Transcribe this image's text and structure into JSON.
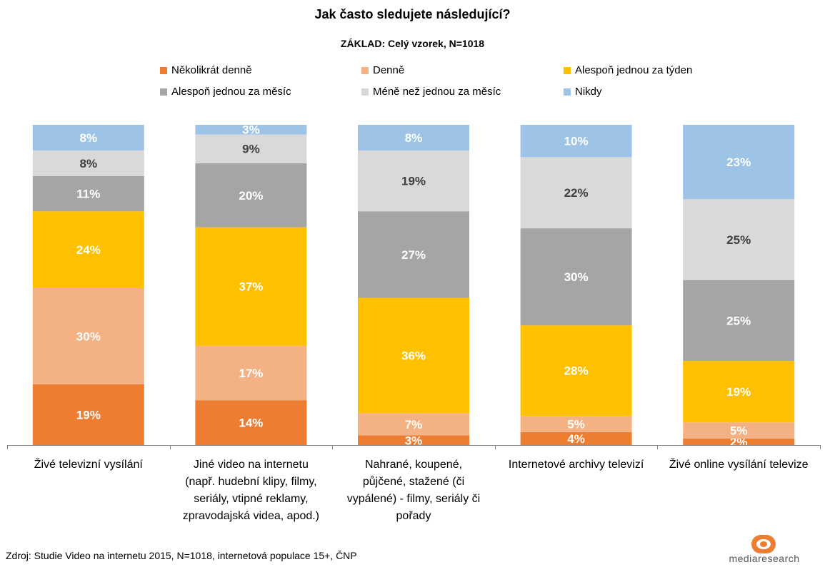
{
  "chart_data": {
    "type": "bar",
    "stacked": true,
    "title": "Jak často sledujete následující?",
    "subtitle": "ZÁKLAD: Celý vzorek, N=1018",
    "categories": [
      "Živé televizní vysílání",
      "Jiné video na internetu (např. hudební klipy, filmy, seriály, vtipné reklamy, zpravodajská videa, apod.)",
      "Nahrané, koupené, půjčené, stažené (či vypálené) - filmy, seriály či pořady",
      "Internetové archivy televizí",
      "Živé online vysílání televize"
    ],
    "category_lines": [
      [
        "Živé televizní vysílání"
      ],
      [
        "Jiné video na internetu",
        "(např. hudební klipy, filmy,",
        "seriály, vtipné reklamy,",
        "zpravodajská videa, apod.)"
      ],
      [
        "Nahrané, koupené,",
        "půjčené, stažené (či",
        "vypálené) - filmy, seriály či",
        "pořady"
      ],
      [
        "Internetové archivy televizí"
      ],
      [
        "Živé online vysílání televize"
      ]
    ],
    "series": [
      {
        "name": "Několikrát denně",
        "color": "#ED7D31",
        "label_color": "#ffffff",
        "values": [
          19,
          14,
          3,
          4,
          2
        ]
      },
      {
        "name": "Denně",
        "color": "#F4B183",
        "label_color": "#ffffff",
        "values": [
          30,
          17,
          7,
          5,
          5
        ]
      },
      {
        "name": "Alespoň jednou za týden",
        "color": "#FFC000",
        "label_color": "#ffffff",
        "values": [
          24,
          37,
          36,
          28,
          19
        ]
      },
      {
        "name": "Alespoň jednou za měsíc",
        "color": "#A5A5A5",
        "label_color": "#ffffff",
        "values": [
          11,
          20,
          27,
          30,
          25
        ]
      },
      {
        "name": "Méně než jednou za měsíc",
        "color": "#D9D9D9",
        "label_color": "#404040",
        "values": [
          8,
          9,
          19,
          22,
          25
        ]
      },
      {
        "name": "Nikdy",
        "color": "#9DC3E6",
        "label_color": "#ffffff",
        "values": [
          8,
          3,
          8,
          10,
          23
        ]
      }
    ],
    "value_suffix": "%",
    "ylim": [
      0,
      100
    ],
    "grid": false,
    "legend_position": "top"
  },
  "source_text": "Zdroj:  Studie Video na internetu 2015, N=1018, internetová populace 15+, ČNP",
  "logo_text": "mediaresearch",
  "brand_color": "#ED7D31"
}
